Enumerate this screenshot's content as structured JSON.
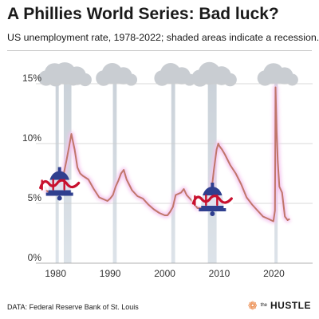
{
  "header": {
    "title": "A Phillies World Series: Bad luck?",
    "subtitle": "US unemployment rate, 1978-2022; shaded areas indicate a recession."
  },
  "footer": {
    "source": "DATA: Federal Reserve Bank of St. Louis",
    "brand_the": "the",
    "brand_name": "HUSTLE",
    "brand_icon": "hubspot-sprocket-icon"
  },
  "colors": {
    "line": "#c0766a",
    "line_glow": "#f5c6ef",
    "recession": "#d3dde6",
    "cloud": "#c9cdd2",
    "phillies_red": "#c8102e",
    "phillies_blue": "#2f3f8f",
    "grid": "#cccccc"
  },
  "chart_data": {
    "type": "line",
    "title": "A Phillies World Series: Bad luck?",
    "subtitle": "US unemployment rate, 1978-2022; shaded areas indicate a recession.",
    "xlabel": "",
    "ylabel": "",
    "xlim": [
      1978,
      2023
    ],
    "ylim": [
      0,
      15
    ],
    "x_ticks": [
      {
        "value": 1980,
        "label": "1980"
      },
      {
        "value": 1990,
        "label": "1990"
      },
      {
        "value": 2000,
        "label": "2000"
      },
      {
        "value": 2010,
        "label": "2010"
      },
      {
        "value": 2020,
        "label": "2020"
      }
    ],
    "y_ticks": [
      {
        "value": 0,
        "label": "0%"
      },
      {
        "value": 5,
        "label": "5%"
      },
      {
        "value": 10,
        "label": "10%"
      },
      {
        "value": 15,
        "label": "15%"
      }
    ],
    "grid": true,
    "recessions": [
      {
        "start": 1980.0,
        "end": 1980.5
      },
      {
        "start": 1981.5,
        "end": 1982.9
      },
      {
        "start": 1990.5,
        "end": 1991.2
      },
      {
        "start": 2001.2,
        "end": 2001.9
      },
      {
        "start": 2007.9,
        "end": 2009.5
      },
      {
        "start": 2020.1,
        "end": 2020.4
      }
    ],
    "world_series_wins": [
      1980,
      2008
    ],
    "series": [
      {
        "name": "",
        "x": [
          1978.0,
          1978.5,
          1979.0,
          1979.5,
          1980.0,
          1980.5,
          1981.0,
          1981.5,
          1982.0,
          1982.5,
          1982.9,
          1983.5,
          1984.0,
          1984.5,
          1985.0,
          1986.0,
          1987.0,
          1988.0,
          1989.0,
          1989.5,
          1990.0,
          1990.5,
          1991.0,
          1991.5,
          1992.0,
          1992.5,
          1993.0,
          1994.0,
          1995.0,
          1996.0,
          1997.0,
          1998.0,
          1999.0,
          2000.0,
          2000.5,
          2001.0,
          2001.5,
          2002.0,
          2002.5,
          2003.0,
          2003.5,
          2004.0,
          2005.0,
          2006.0,
          2007.0,
          2007.5,
          2008.0,
          2008.5,
          2009.0,
          2009.5,
          2009.8,
          2010.0,
          2010.5,
          2011.0,
          2012.0,
          2013.0,
          2014.0,
          2015.0,
          2016.0,
          2017.0,
          2018.0,
          2019.0,
          2019.9,
          2020.2,
          2020.3,
          2020.5,
          2020.7,
          2021.0,
          2021.5,
          2022.0,
          2022.5,
          2022.9
        ],
        "values": [
          6.4,
          6.0,
          5.9,
          5.9,
          6.3,
          7.5,
          7.4,
          7.5,
          8.6,
          9.8,
          10.8,
          9.5,
          8.0,
          7.5,
          7.3,
          7.0,
          6.2,
          5.5,
          5.3,
          5.2,
          5.4,
          5.7,
          6.4,
          6.9,
          7.5,
          7.8,
          7.0,
          6.1,
          5.6,
          5.4,
          4.9,
          4.5,
          4.2,
          4.0,
          4.0,
          4.3,
          4.7,
          5.7,
          5.8,
          5.9,
          6.2,
          5.7,
          5.2,
          4.6,
          4.6,
          4.7,
          5.0,
          5.8,
          7.8,
          9.5,
          10.0,
          9.8,
          9.5,
          9.1,
          8.2,
          7.5,
          6.6,
          5.5,
          4.9,
          4.4,
          3.9,
          3.7,
          3.5,
          4.4,
          14.7,
          11.0,
          8.5,
          6.4,
          5.9,
          3.9,
          3.6,
          3.7
        ]
      }
    ]
  }
}
